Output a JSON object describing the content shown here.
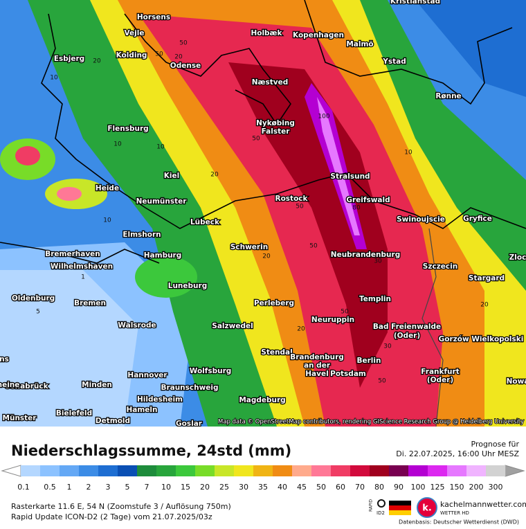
{
  "map": {
    "cities": [
      "Kristianstad",
      "Horsens",
      "Vejle",
      "Kolding",
      "Esbjerg",
      "Odense",
      "Holbæk",
      "Kopenhagen",
      "Malmö",
      "Ystad",
      "Rønne",
      "Næstved",
      "Nykøbing",
      "Falster",
      "Flensburg",
      "Kiel",
      "Heide",
      "Neumünster",
      "Stralsund",
      "Greifswald",
      "Rostock",
      "Swinoujscie",
      "Gryfice",
      "Lübeck",
      "Elmshorn",
      "Bremerhaven",
      "Wilhelmshaven",
      "Hamburg",
      "Schwerin",
      "Neubrandenburg",
      "Szczecin",
      "Zloc",
      "Stargard",
      "Oldenburg",
      "Bremen",
      "Luneburg",
      "Templin",
      "Perleberg",
      "Neuruppin",
      "Bad Freienwalde",
      "(Oder)",
      "Walsrode",
      "Salzwedel",
      "Gorzów Wielkopolski",
      "Stendal",
      "Brandenburg",
      "an der",
      "Havel",
      "Berlin",
      "Potsdam",
      "Frankfurt",
      "(Oder)",
      "Nowa",
      "Hannover",
      "Wolfsburg",
      "Braunschweig",
      "Osnabrück",
      "Minden",
      "Hildesheim",
      "Magdeburg",
      "Bielefeld",
      "Hameln",
      "Münster",
      "Detmold",
      "Goslar",
      "ns",
      "heine"
    ],
    "contour_labels": [
      "20",
      "10",
      "20",
      "50",
      "50",
      "10",
      "100",
      "50",
      "20",
      "10",
      "50",
      "80",
      "30",
      "50",
      "20",
      "10",
      "1",
      "5",
      "20",
      "50",
      "20",
      "10",
      "50",
      "30"
    ],
    "attribution": "Map data © OpenStreetMap contributors, rendering GIScience Research Group @ Heidelberg University"
  },
  "legend": {
    "title": "Niederschlagssumme, 24std (mm)",
    "forecast_label": "Prognose für",
    "forecast_time": "Di. 22.07.2025, 16:00 Uhr MESZ",
    "bins": [
      0.1,
      0.5,
      1,
      2,
      3,
      5,
      7,
      10,
      15,
      20,
      25,
      30,
      35,
      40,
      45,
      50,
      60,
      70,
      80,
      90,
      100,
      125,
      150,
      200,
      300
    ],
    "colors": [
      "#b4d7ff",
      "#8cc2ff",
      "#64a8f5",
      "#3c8ce6",
      "#1e6ed2",
      "#0a4fb4",
      "#1e8c3c",
      "#28a53c",
      "#3cc83c",
      "#78dc28",
      "#c8e628",
      "#f0e61e",
      "#f0b414",
      "#f08c14",
      "#ffaa8c",
      "#ff7896",
      "#f03c64",
      "#d20a3c",
      "#a0001e",
      "#780050",
      "#b400d2",
      "#dc28f0",
      "#e678ff",
      "#f0b4ff",
      "#d2d2d2"
    ]
  },
  "footer": {
    "line1": "Rasterkarte 11.6 E, 54 N (Zoomstufe 3 / Auflösung 750m)",
    "line2": "Rapid Update ICON-D2 (2 Tage) vom 21.07.2025/03z",
    "rapid": "RAPID",
    "id2": "ID2",
    "brand": "kachelmannwetter.com",
    "brand_sub": "WETTER HD",
    "logo": "k.",
    "source": "Datenbasis: Deutscher Wetterdienst (DWD)"
  }
}
